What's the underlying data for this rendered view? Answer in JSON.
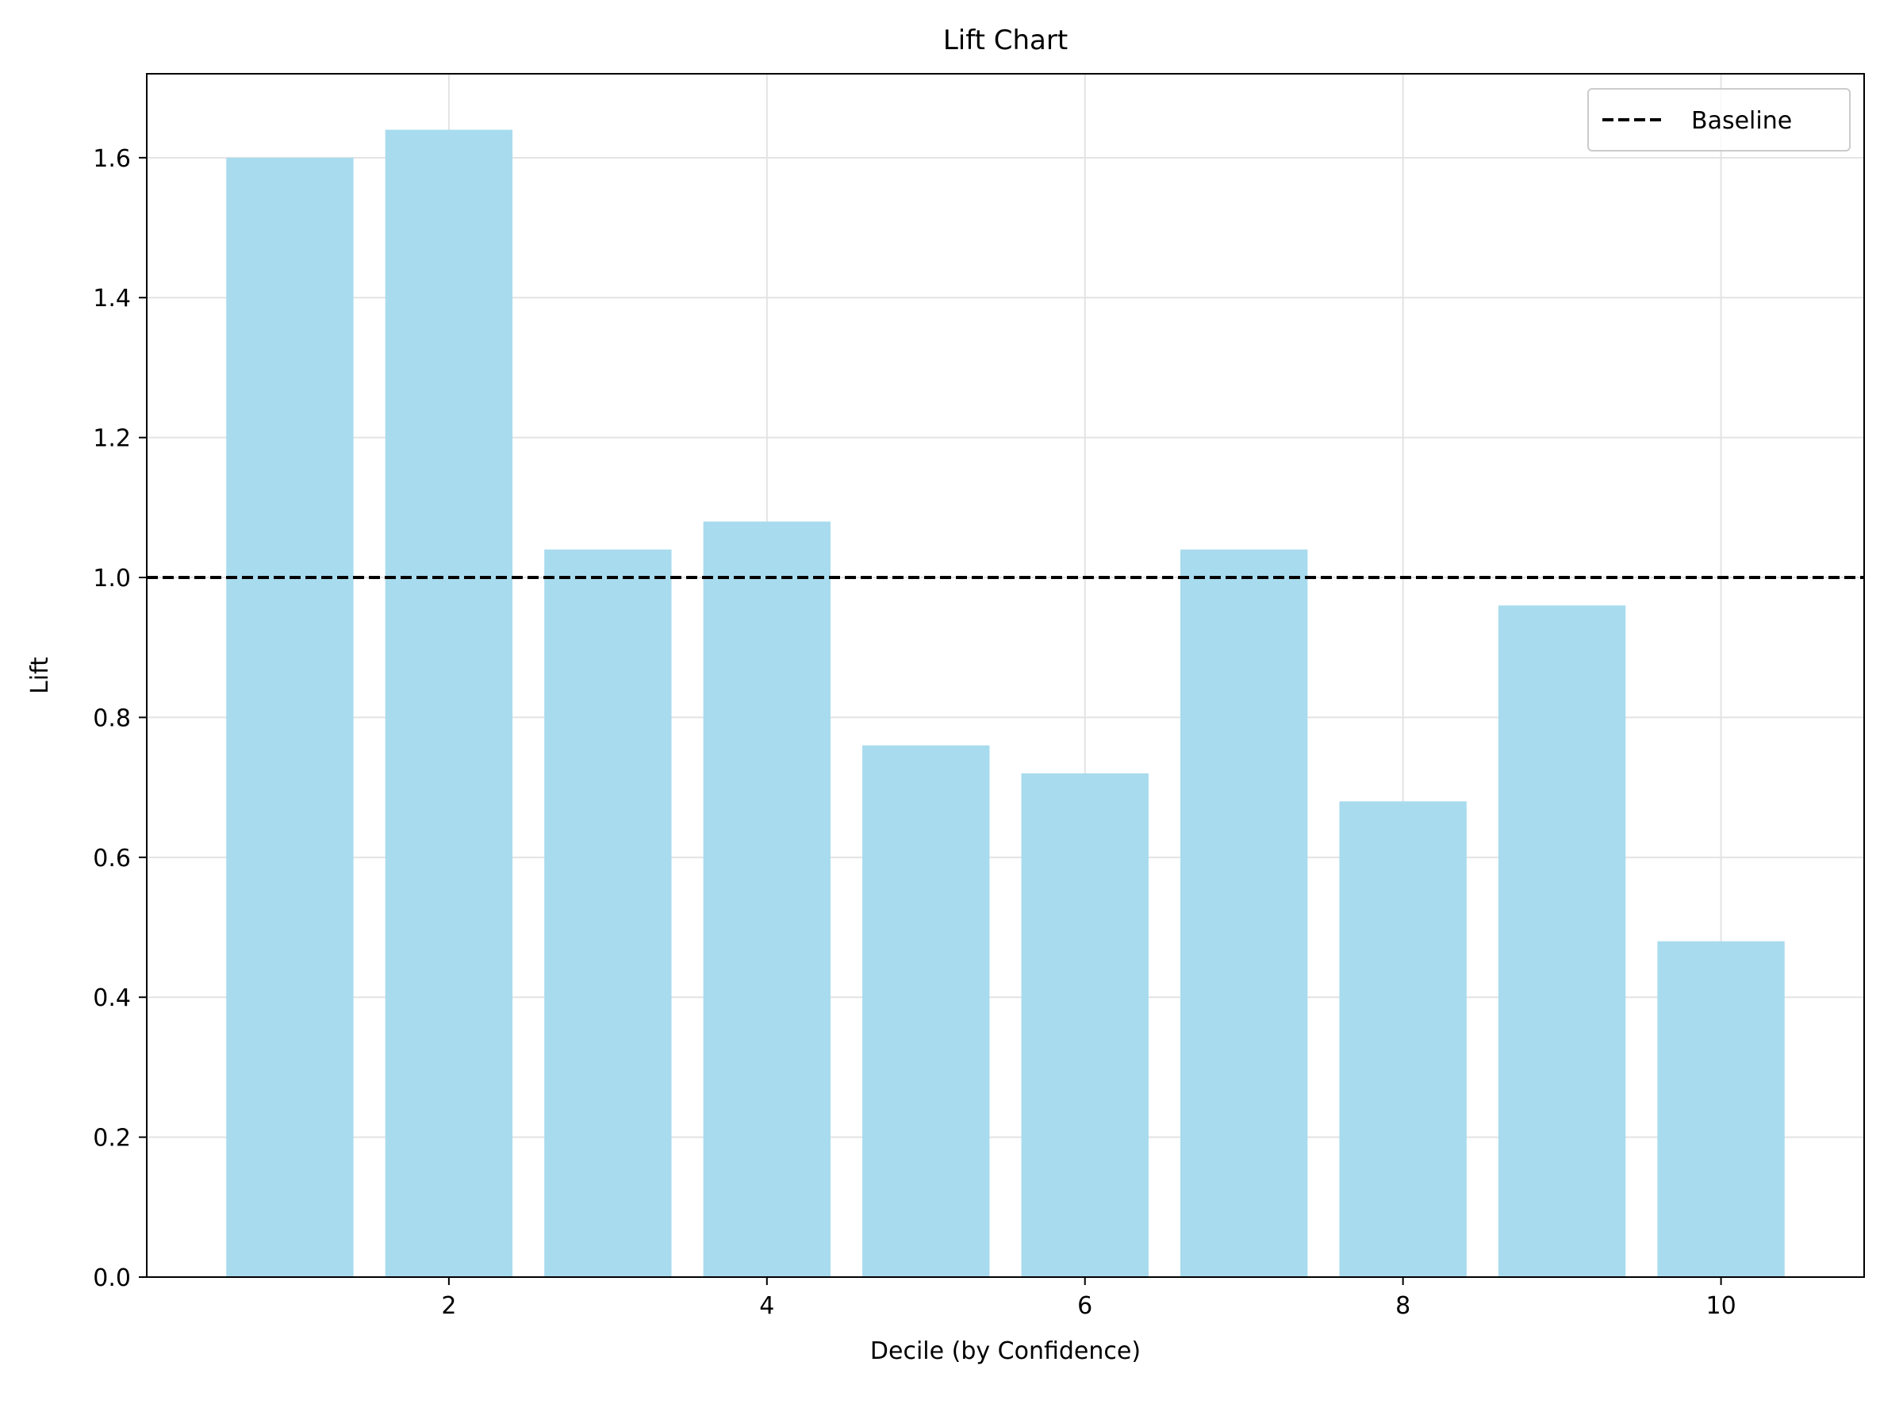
{
  "chart_data": {
    "type": "bar",
    "title": "Lift Chart",
    "xlabel": "Decile (by Confidence)",
    "ylabel": "Lift",
    "categories": [
      1,
      2,
      3,
      4,
      5,
      6,
      7,
      8,
      9,
      10
    ],
    "values": [
      1.6,
      1.64,
      1.04,
      1.08,
      0.76,
      0.72,
      1.04,
      0.68,
      0.96,
      0.48
    ],
    "bar_color": "#a8dbee",
    "xlim": [
      0.1,
      10.9
    ],
    "ylim": [
      0.0,
      1.72
    ],
    "xticks": [
      2,
      4,
      6,
      8,
      10
    ],
    "xtick_labels": [
      "2",
      "4",
      "6",
      "8",
      "10"
    ],
    "yticks": [
      0.0,
      0.2,
      0.4,
      0.6,
      0.8,
      1.0,
      1.2,
      1.4,
      1.6
    ],
    "ytick_labels": [
      "0.0",
      "0.2",
      "0.4",
      "0.6",
      "0.8",
      "1.0",
      "1.2",
      "1.4",
      "1.6"
    ],
    "grid": true,
    "baseline": {
      "value": 1.0,
      "label": "Baseline",
      "style": "dashed",
      "color": "#000000"
    },
    "legend": {
      "position": "top-right",
      "entries": [
        "Baseline"
      ]
    }
  }
}
